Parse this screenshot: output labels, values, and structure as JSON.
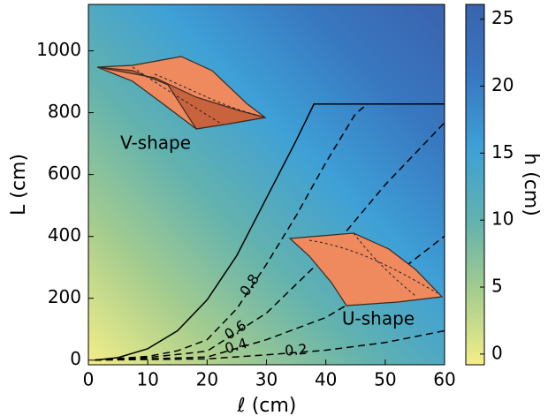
{
  "chart_data": {
    "type": "line",
    "xlabel": "ℓ (cm)",
    "ylabel": "L (cm)",
    "xlim": [
      0,
      60
    ],
    "xticks": [
      0,
      10,
      20,
      30,
      40,
      50,
      60
    ],
    "ylim": [
      -15,
      1150
    ],
    "yticks": [
      0,
      200,
      400,
      600,
      800,
      1000
    ],
    "series": [
      {
        "color": "#000000",
        "dashed": false,
        "x": [
          1,
          5,
          10,
          15,
          20,
          25,
          30,
          35,
          38,
          60
        ],
        "values": [
          0,
          8,
          37,
          95,
          195,
          338,
          524,
          710,
          828,
          828
        ]
      },
      {
        "name": "0.8",
        "color": "#000000",
        "dashed": true,
        "x": [
          1,
          10,
          15,
          20,
          25,
          30,
          35,
          40,
          45,
          47,
          60
        ],
        "values": [
          0,
          12,
          30,
          66,
          166,
          310,
          467,
          639,
          797,
          828,
          828
        ]
      },
      {
        "name": "0.6",
        "color": "#000000",
        "dashed": true,
        "x": [
          1,
          10,
          20,
          30,
          40,
          50,
          60
        ],
        "values": [
          0,
          8,
          29,
          152,
          338,
          567,
          768
        ]
      },
      {
        "name": "0.4",
        "color": "#000000",
        "dashed": true,
        "x": [
          1,
          10,
          20,
          30,
          40,
          50,
          60
        ],
        "values": [
          0,
          4,
          10,
          66,
          138,
          252,
          401
        ]
      },
      {
        "name": "0.2",
        "color": "#000000",
        "dashed": true,
        "x": [
          1,
          20,
          30,
          40,
          50,
          60
        ],
        "values": [
          0,
          4,
          17,
          32,
          57,
          95
        ]
      }
    ],
    "annotations": [
      "V-shape",
      "U-shape"
    ],
    "colorbar": {
      "label": "h (cm)",
      "lim": [
        -0.8,
        26.1
      ],
      "ticks": [
        0,
        5,
        10,
        15,
        20,
        25
      ],
      "colors": [
        "#f4ee88",
        "#a6cd8e",
        "#62b2ae",
        "#3ea0d6",
        "#3878c0",
        "#3a62ad"
      ]
    }
  }
}
